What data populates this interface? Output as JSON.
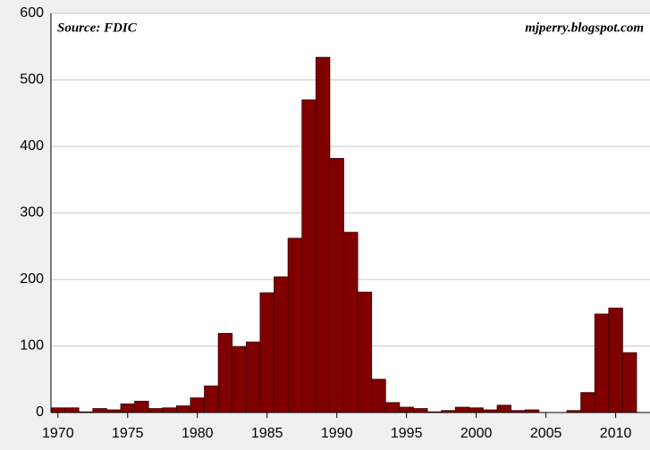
{
  "chart_data": {
    "type": "bar",
    "annotations": [
      "Source: FDIC",
      "mjperry.blogspot.com"
    ],
    "x": [
      1970,
      1971,
      1972,
      1973,
      1974,
      1975,
      1976,
      1977,
      1978,
      1979,
      1980,
      1981,
      1982,
      1983,
      1984,
      1985,
      1986,
      1987,
      1988,
      1989,
      1990,
      1991,
      1992,
      1993,
      1994,
      1995,
      1996,
      1997,
      1998,
      1999,
      2000,
      2001,
      2002,
      2003,
      2004,
      2005,
      2006,
      2007,
      2008,
      2009,
      2010,
      2011
    ],
    "values": [
      7,
      7,
      1,
      6,
      4,
      13,
      17,
      6,
      7,
      10,
      22,
      40,
      119,
      99,
      106,
      180,
      204,
      262,
      470,
      534,
      382,
      271,
      181,
      50,
      15,
      8,
      6,
      1,
      3,
      8,
      7,
      4,
      11,
      3,
      4,
      0,
      0,
      3,
      30,
      148,
      157,
      90
    ],
    "color": "#800000",
    "xlim": [
      1969.5,
      2011.5
    ],
    "xticks": [
      1970,
      1975,
      1980,
      1985,
      1990,
      1995,
      2000,
      2005,
      2010
    ],
    "ylim": [
      0,
      600
    ],
    "yticks": [
      0,
      100,
      200,
      300,
      400,
      500,
      600
    ],
    "grid": true
  }
}
